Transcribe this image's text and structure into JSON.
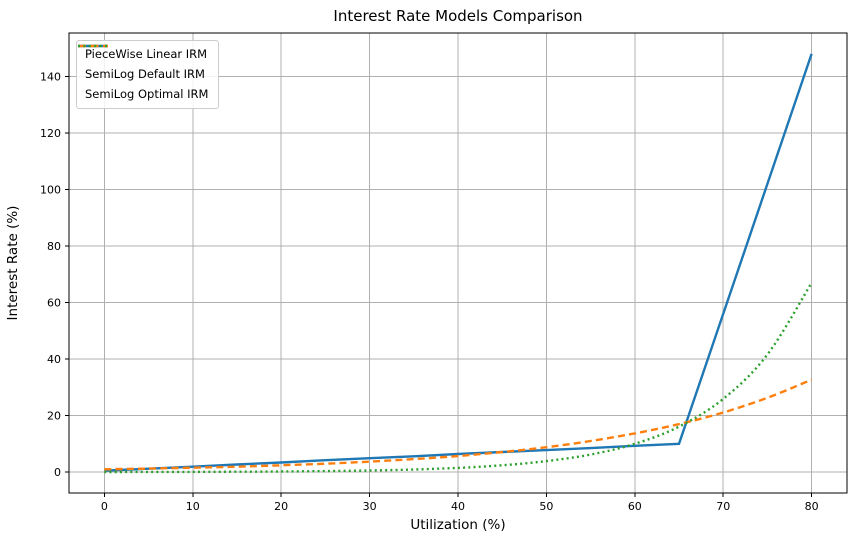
{
  "chart_data": {
    "type": "line",
    "title": "Interest Rate Models Comparison",
    "xlabel": "Utilization (%)",
    "ylabel": "Interest Rate (%)",
    "x": [
      0,
      5,
      10,
      15,
      20,
      25,
      30,
      35,
      40,
      45,
      50,
      55,
      60,
      65,
      70,
      75,
      80
    ],
    "series": [
      {
        "name": "PieceWise Linear IRM",
        "color": "#1f77b4",
        "style": "solid",
        "smooth": false,
        "values": [
          0.5,
          1.2,
          1.9,
          2.7,
          3.4,
          4.2,
          4.9,
          5.6,
          6.4,
          7.1,
          7.8,
          8.5,
          9.3,
          10.0,
          56.0,
          102.0,
          148.0
        ]
      },
      {
        "name": "SemiLog Default IRM",
        "color": "#ff7f0e",
        "style": "dashed",
        "smooth": true,
        "values": [
          1.0,
          1.24,
          1.55,
          1.92,
          2.39,
          2.97,
          3.7,
          4.6,
          5.7,
          7.1,
          8.8,
          11.0,
          13.7,
          17.0,
          21.1,
          26.3,
          32.7
        ]
      },
      {
        "name": "SemiLog Optimal IRM",
        "color": "#2ca02c",
        "style": "dotted",
        "smooth": true,
        "values": [
          0.03,
          0.05,
          0.08,
          0.13,
          0.22,
          0.35,
          0.57,
          0.92,
          1.5,
          2.4,
          3.9,
          6.2,
          10.0,
          16.1,
          25.9,
          41.6,
          67.0
        ]
      }
    ],
    "x_ticks": [
      0,
      10,
      20,
      30,
      40,
      50,
      60,
      70,
      80
    ],
    "y_ticks": [
      0,
      20,
      40,
      60,
      80,
      100,
      120,
      140
    ],
    "xlim": [
      -4,
      84
    ],
    "ylim": [
      -7.4,
      155.4
    ],
    "grid": true,
    "grid_color": "#b0b0b0",
    "spine_color": "#000000",
    "legend_position": "upper-left"
  }
}
